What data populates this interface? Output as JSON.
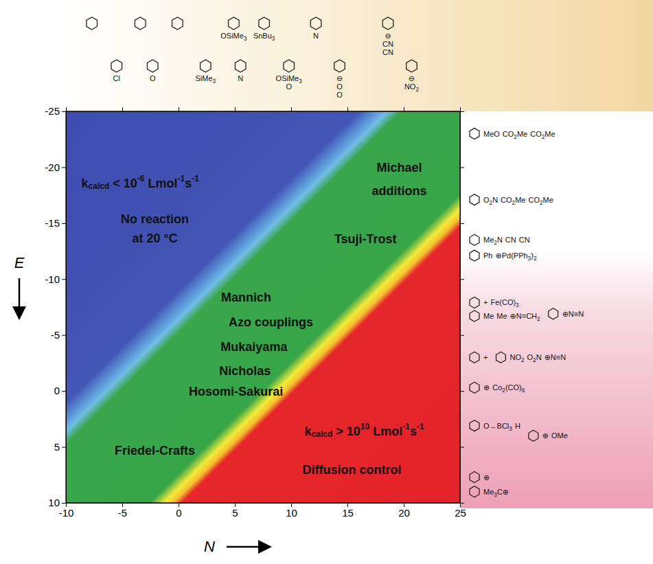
{
  "chart_data": {
    "type": "reactivity_map",
    "x_label": "N",
    "y_label": "E",
    "xlim": [
      -10,
      25
    ],
    "xticks": [
      -10,
      -5,
      0,
      5,
      10,
      15,
      20,
      25
    ],
    "ylim": [
      10,
      -25
    ],
    "yticks": [
      10,
      5,
      0,
      -5,
      -10,
      -15,
      -20,
      -25
    ],
    "log_k_bounds": [
      -6,
      10
    ],
    "annotations": [
      {
        "x": -3.4,
        "y": -18.5,
        "parts": [
          {
            "t": "k"
          },
          {
            "t": "calcd",
            "sub": true
          },
          {
            "t": " < 10"
          },
          {
            "t": "-6",
            "sup": true
          },
          {
            "t": " Lmol"
          },
          {
            "t": "-1",
            "sup": true
          },
          {
            "t": "s"
          },
          {
            "t": "-1",
            "sup": true
          }
        ]
      },
      {
        "x": -2.1,
        "y": -15.3,
        "parts": [
          {
            "t": "No reaction"
          }
        ]
      },
      {
        "x": -2.1,
        "y": -13.6,
        "parts": [
          {
            "t": "at 20 °C"
          }
        ]
      },
      {
        "x": 19.6,
        "y": -19.9,
        "parts": [
          {
            "t": "Michael"
          }
        ]
      },
      {
        "x": 19.6,
        "y": -17.8,
        "parts": [
          {
            "t": "additions"
          }
        ]
      },
      {
        "x": 16.6,
        "y": -13.5,
        "parts": [
          {
            "t": "Tsuji-Trost"
          }
        ]
      },
      {
        "x": 6.0,
        "y": -8.3,
        "parts": [
          {
            "t": "Mannich"
          }
        ]
      },
      {
        "x": 8.2,
        "y": -6.1,
        "parts": [
          {
            "t": "Azo couplings"
          }
        ]
      },
      {
        "x": 6.7,
        "y": -3.9,
        "parts": [
          {
            "t": "Mukaiyama"
          }
        ]
      },
      {
        "x": 5.9,
        "y": -1.7,
        "parts": [
          {
            "t": "Nicholas"
          }
        ]
      },
      {
        "x": 5.1,
        "y": 0.1,
        "parts": [
          {
            "t": "Hosomi-Sakurai"
          }
        ]
      },
      {
        "x": -2.1,
        "y": 5.4,
        "parts": [
          {
            "t": "Friedel-Crafts"
          }
        ]
      },
      {
        "x": 16.5,
        "y": 3.7,
        "parts": [
          {
            "t": "k"
          },
          {
            "t": "calcd",
            "sub": true
          },
          {
            "t": " > 10"
          },
          {
            "t": "10",
            "sup": true
          },
          {
            "t": " Lmol"
          },
          {
            "t": "-1",
            "sup": true
          },
          {
            "t": "s"
          },
          {
            "t": "-1",
            "sup": true
          }
        ]
      },
      {
        "x": 15.4,
        "y": 7.1,
        "parts": [
          {
            "t": "Diffusion control"
          }
        ]
      }
    ],
    "nucleophiles": [
      {
        "N": -7.7
      },
      {
        "N": -5.5,
        "labels": [
          "Cl"
        ]
      },
      {
        "N": -3.4
      },
      {
        "N": -2.3,
        "labels": [
          "O"
        ]
      },
      {
        "N": -0.1
      },
      {
        "N": 2.4,
        "labels": [
          "SiMe3"
        ]
      },
      {
        "N": 4.9,
        "labels": [
          "OSiMe3"
        ]
      },
      {
        "N": 5.5,
        "labels": [
          "N"
        ]
      },
      {
        "N": 7.6,
        "labels": [
          "SnBu3"
        ]
      },
      {
        "N": 9.8,
        "labels": [
          "OSiMe3",
          "O"
        ]
      },
      {
        "N": 12.2,
        "labels": [
          "N"
        ]
      },
      {
        "N": 14.3,
        "labels": [
          "⊖",
          "O",
          "O"
        ]
      },
      {
        "N": 18.6,
        "labels": [
          "⊖",
          "CN",
          "CN"
        ]
      },
      {
        "N": 20.7,
        "labels": [
          "⊖",
          "NO2"
        ]
      }
    ],
    "electrophiles": [
      {
        "E": -23.0,
        "labels": [
          "MeO",
          "CO2Me",
          "CO2Me"
        ]
      },
      {
        "E": -17.1,
        "labels": [
          "O2N",
          "CO2Me",
          "CO2Me"
        ]
      },
      {
        "E": -13.5,
        "labels": [
          "Me2N",
          "CN",
          "CN"
        ]
      },
      {
        "E": -12.1,
        "labels": [
          "Ph",
          "⊕Pd(PPh3)2"
        ]
      },
      {
        "E": -7.9,
        "labels": [
          "+",
          "Fe(CO)3"
        ]
      },
      {
        "E": -6.7,
        "labels": [
          "Me",
          "Me",
          "⊕N=CH2"
        ]
      },
      {
        "E": -6.9,
        "labels": [
          "⊕N≡N"
        ]
      },
      {
        "E": -3.0,
        "labels": [
          "+"
        ]
      },
      {
        "E": -3.0,
        "labels": [
          "NO2",
          "O2N",
          "⊕N≡N"
        ]
      },
      {
        "E": -0.3,
        "labels": [
          "⊕",
          "Co2(CO)6"
        ]
      },
      {
        "E": 3.1,
        "labels": [
          "O→BCl3",
          "H"
        ]
      },
      {
        "E": 4.0,
        "labels": [
          "⊕",
          "OMe"
        ]
      },
      {
        "E": 7.7,
        "labels": [
          "⊕"
        ]
      },
      {
        "E": 9.0,
        "labels": [
          "Me3C⊕"
        ]
      }
    ]
  }
}
